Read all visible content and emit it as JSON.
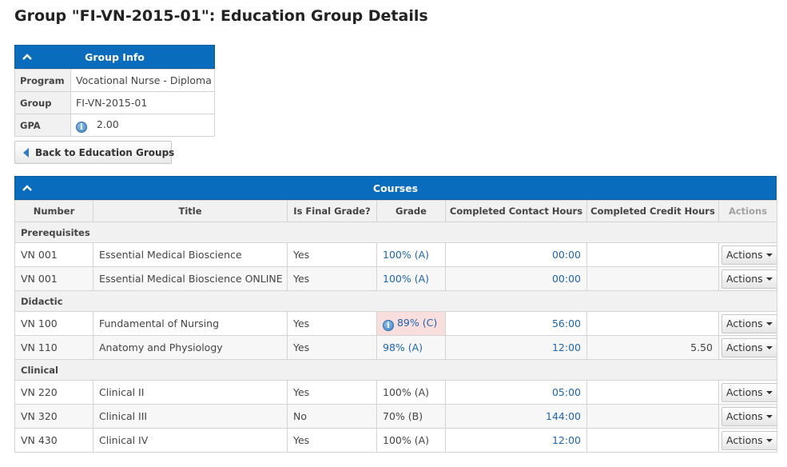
{
  "page": {
    "title": "Group \"FI-VN-2015-01\": Education Group Details"
  },
  "group_info": {
    "header": "Group Info",
    "rows": [
      {
        "label": "Program",
        "value": "Vocational Nurse - Diploma"
      },
      {
        "label": "Group",
        "value": "FI-VN-2015-01"
      },
      {
        "label": "GPA",
        "value": "2.00",
        "icon": "info-icon"
      }
    ]
  },
  "back_button": {
    "label": "Back to Education Groups",
    "icon": "left-triangle-icon"
  },
  "courses": {
    "header": "Courses",
    "columns": [
      "Number",
      "Title",
      "Is Final Grade?",
      "Grade",
      "Completed Contact Hours",
      "Completed Credit Hours",
      "Actions"
    ],
    "action_label": "Actions",
    "groups": [
      {
        "name": "Prerequisites",
        "rows": [
          {
            "number": "VN 001",
            "title": "Essential Medical Bioscience",
            "final": "Yes",
            "grade": "100% (A)",
            "contact": "00:00",
            "credit": ""
          },
          {
            "number": "VN 001",
            "title": "Essential Medical Bioscience ONLINE",
            "final": "Yes",
            "grade": "100% (A)",
            "contact": "00:00",
            "credit": ""
          }
        ]
      },
      {
        "name": "Didactic",
        "rows": [
          {
            "number": "VN 100",
            "title": "Fundamental of Nursing",
            "final": "Yes",
            "grade": "89% (C)",
            "contact": "56:00",
            "credit": ""
          },
          {
            "number": "VN 110",
            "title": "Anatomy and Physiology",
            "final": "Yes",
            "grade": "98% (A)",
            "contact": "12:00",
            "credit": "5.50"
          }
        ]
      },
      {
        "name": "Clinical",
        "rows": [
          {
            "number": "VN 220",
            "title": "Clinical II",
            "final": "Yes",
            "grade": "100% (A)",
            "contact": "05:00",
            "credit": ""
          },
          {
            "number": "VN 320",
            "title": "Clinical III",
            "final": "No",
            "grade": "70% (B)",
            "contact": "144:00",
            "credit": ""
          },
          {
            "number": "VN 430",
            "title": "Clinical IV",
            "final": "Yes",
            "grade": "100% (A)",
            "contact": "12:00",
            "credit": ""
          }
        ]
      }
    ]
  },
  "colors": {
    "header_blue": "#0a6cbc",
    "link_blue": "#1b66b1",
    "warning_bg": "#f9dede"
  }
}
